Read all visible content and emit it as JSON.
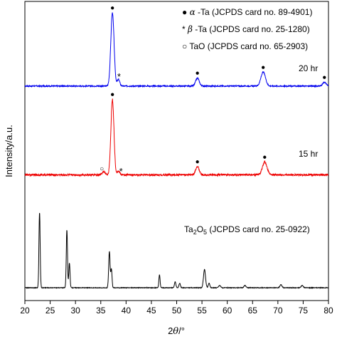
{
  "chart_data": {
    "type": "line",
    "x_label": {
      "prefix": "2",
      "theta": "θ",
      "suffix": "/°"
    },
    "y_label": "Intensity/a.u.",
    "x_range": [
      20,
      80
    ],
    "x_ticks": [
      "20",
      "25",
      "30",
      "35",
      "40",
      "45",
      "50",
      "55",
      "60",
      "65",
      "70",
      "75",
      "80"
    ],
    "legend": {
      "placement": "top-right",
      "entries": [
        {
          "marker": "●",
          "greek": "α",
          "text": "-Ta (JCPDS card no. 89-4901)"
        },
        {
          "marker": "*",
          "greek": "β",
          "text": "-Ta (JCPDS card no. 25-1280)"
        },
        {
          "marker": "○",
          "greek": "",
          "text": "TaO (JCPDS card no. 65-2903)"
        }
      ]
    },
    "series": [
      {
        "name": "20 hr",
        "color": "#0000ee",
        "baseline": 0.06,
        "noise": 0.008,
        "peaks": [
          {
            "x": 37.3,
            "height": 1.0,
            "width": 0.32
          },
          {
            "x": 38.5,
            "height": 0.09,
            "width": 0.25
          },
          {
            "x": 54.1,
            "height": 0.11,
            "width": 0.35
          },
          {
            "x": 67.1,
            "height": 0.19,
            "width": 0.45
          },
          {
            "x": 79.2,
            "height": 0.05,
            "width": 0.35
          }
        ],
        "markers": [
          {
            "x": 37.3,
            "symbol": "●"
          },
          {
            "x": 38.6,
            "symbol": "*"
          },
          {
            "x": 54.1,
            "symbol": "●"
          },
          {
            "x": 67.1,
            "symbol": "●"
          },
          {
            "x": 79.2,
            "symbol": "●"
          }
        ]
      },
      {
        "name": "15 hr",
        "color": "#ee0000",
        "baseline": 0.08,
        "noise": 0.012,
        "peaks": [
          {
            "x": 37.3,
            "height": 1.0,
            "width": 0.3
          },
          {
            "x": 35.6,
            "height": 0.04,
            "width": 0.3
          },
          {
            "x": 38.5,
            "height": 0.05,
            "width": 0.25
          },
          {
            "x": 54.1,
            "height": 0.11,
            "width": 0.35
          },
          {
            "x": 67.4,
            "height": 0.17,
            "width": 0.45
          }
        ],
        "markers": [
          {
            "x": 35.2,
            "symbol": "○"
          },
          {
            "x": 37.3,
            "symbol": "●"
          },
          {
            "x": 39.0,
            "symbol": "*"
          },
          {
            "x": 54.1,
            "symbol": "●"
          },
          {
            "x": 67.4,
            "symbol": "●"
          }
        ]
      },
      {
        "name": "Ta2O5",
        "color": "#000000",
        "baseline": 0.0,
        "noise": 0.004,
        "peaks": [
          {
            "x": 22.9,
            "height": 1.0,
            "width": 0.12
          },
          {
            "x": 28.3,
            "height": 0.77,
            "width": 0.12
          },
          {
            "x": 28.8,
            "height": 0.33,
            "width": 0.12
          },
          {
            "x": 36.7,
            "height": 0.48,
            "width": 0.14
          },
          {
            "x": 37.1,
            "height": 0.25,
            "width": 0.12
          },
          {
            "x": 46.6,
            "height": 0.17,
            "width": 0.12
          },
          {
            "x": 49.7,
            "height": 0.08,
            "width": 0.14
          },
          {
            "x": 50.6,
            "height": 0.06,
            "width": 0.14
          },
          {
            "x": 55.5,
            "height": 0.24,
            "width": 0.2
          },
          {
            "x": 56.4,
            "height": 0.06,
            "width": 0.15
          },
          {
            "x": 58.5,
            "height": 0.03,
            "width": 0.2
          },
          {
            "x": 63.5,
            "height": 0.03,
            "width": 0.2
          },
          {
            "x": 70.6,
            "height": 0.04,
            "width": 0.2
          },
          {
            "x": 74.8,
            "height": 0.03,
            "width": 0.2
          }
        ],
        "markers": []
      }
    ],
    "series_labels": {
      "s20": "20 hr",
      "s15": "15 hr",
      "ta2o5": {
        "base": "Ta",
        "sub1": "2",
        "mid": "O",
        "sub2": "5",
        "text": " (JCPDS card no. 25-0922)"
      }
    }
  }
}
